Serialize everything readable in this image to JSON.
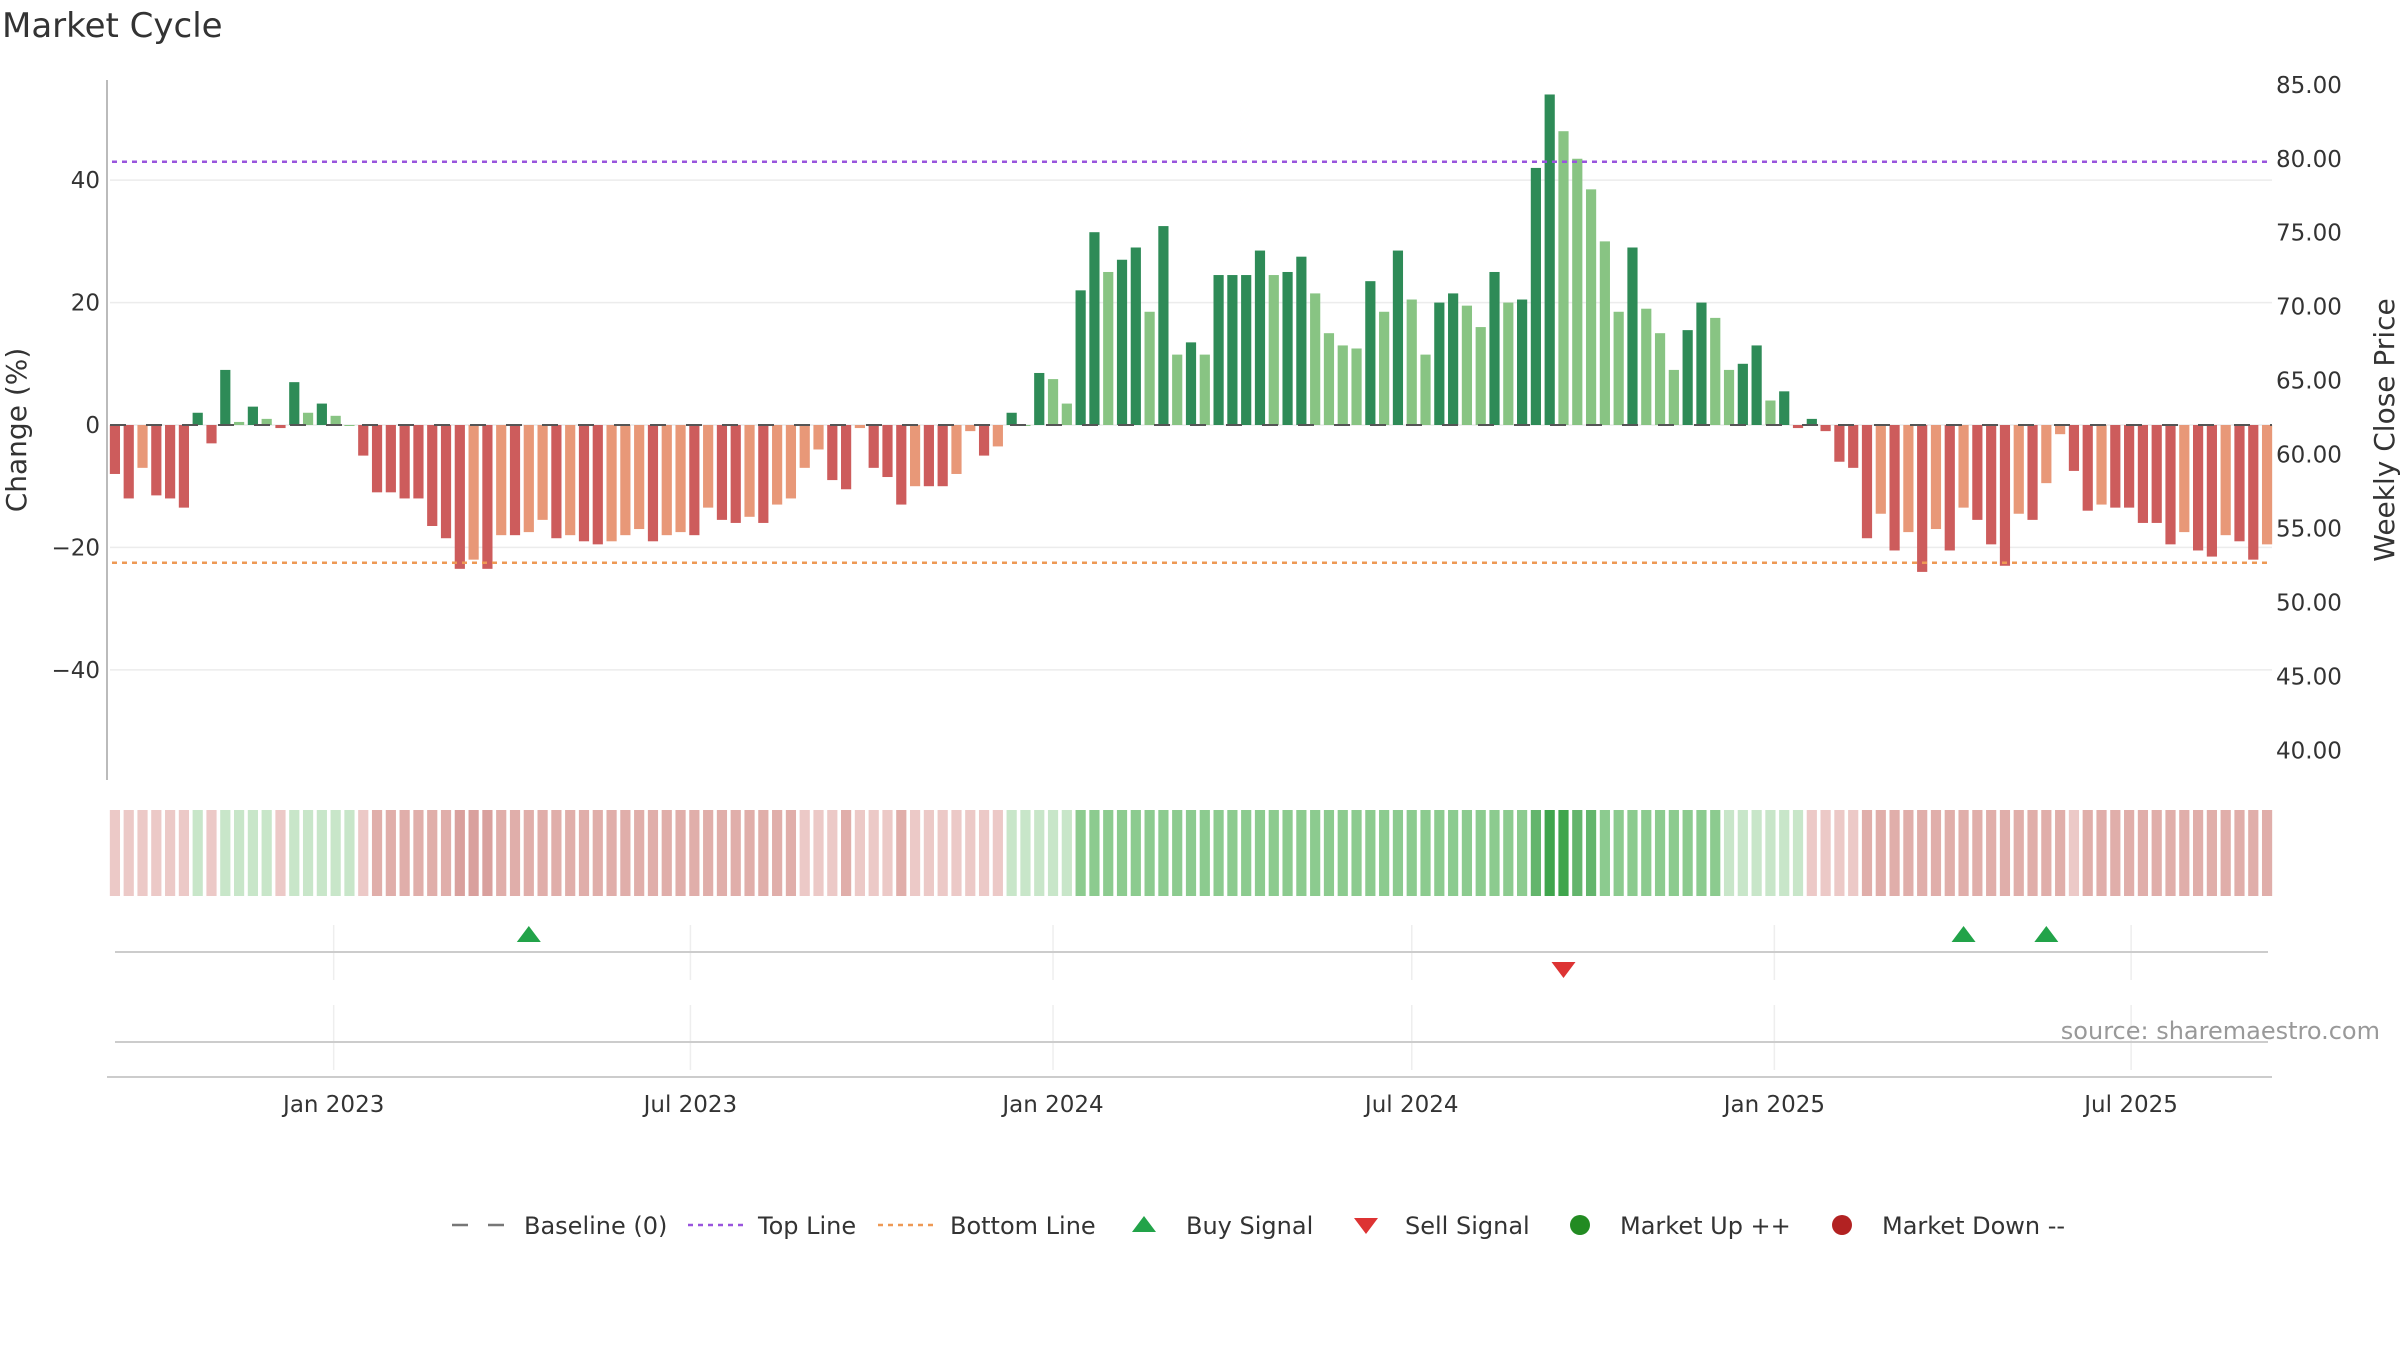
{
  "chart_data": {
    "type": "bar",
    "title": "Market Cycle",
    "ylabel": "Change (%)",
    "y2label": "Weekly Close Price",
    "ylim": [
      -58,
      58
    ],
    "y2lim": [
      38.0,
      86.0
    ],
    "yticks": [
      -40,
      -20,
      0,
      20,
      40
    ],
    "y2ticks": [
      "40.00",
      "45.00",
      "50.00",
      "55.00",
      "60.00",
      "65.00",
      "70.00",
      "75.00",
      "80.00",
      "85.00"
    ],
    "x_start": "2022-09-12",
    "x_step_days": 7,
    "x_ticks": [
      {
        "date": "2023-01-01",
        "label": "Jan 2023"
      },
      {
        "date": "2023-07-01",
        "label": "Jul 2023"
      },
      {
        "date": "2024-01-01",
        "label": "Jan 2024"
      },
      {
        "date": "2024-07-01",
        "label": "Jul 2024"
      },
      {
        "date": "2025-01-01",
        "label": "Jan 2025"
      },
      {
        "date": "2025-07-01",
        "label": "Jul 2025"
      }
    ],
    "values": [
      -8,
      -12,
      -7,
      -11.5,
      -12,
      -13.5,
      2,
      -3,
      9,
      0.5,
      3,
      1,
      -0.5,
      7,
      2,
      3.5,
      1.5,
      0,
      -5,
      -11,
      -11,
      -12,
      -12,
      -16.5,
      -18.5,
      -23.5,
      -22,
      -23.5,
      -18,
      -18,
      -17.5,
      -15.5,
      -18.5,
      -18,
      -19,
      -19.5,
      -19,
      -18,
      -17,
      -19,
      -18,
      -17.5,
      -18,
      -13.5,
      -15.5,
      -16,
      -15,
      -16,
      -13,
      -12,
      -7,
      -4,
      -9,
      -10.5,
      -0.5,
      -7,
      -8.5,
      -13,
      -10,
      -10,
      -10,
      -8,
      -1,
      -5,
      -3.5,
      2,
      0,
      8.5,
      7.5,
      3.5,
      22,
      31.5,
      25,
      27,
      29,
      18.5,
      32.5,
      11.5,
      13.5,
      11.5,
      24.5,
      24.5,
      24.5,
      28.5,
      24.5,
      25,
      27.5,
      21.5,
      15,
      13,
      12.5,
      23.5,
      18.5,
      28.5,
      20.5,
      11.5,
      20,
      21.5,
      19.5,
      16,
      25,
      20,
      20.5,
      42,
      54,
      48,
      43.5,
      38.5,
      30,
      18.5,
      29,
      19,
      15,
      9,
      15.5,
      20,
      17.5,
      9,
      10,
      13,
      4,
      5.5,
      -0.5,
      1,
      -1,
      -6,
      -7,
      -18.5,
      -14.5,
      -20.5,
      -17.5,
      -24,
      -17,
      -20.5,
      -13.5,
      -15.5,
      -19.5,
      -23,
      -14.5,
      -15.5,
      -9.5,
      -1.5,
      -7.5,
      -14,
      -13,
      -13.5,
      -13.5,
      -16,
      -16,
      -19.5,
      -17.5,
      -20.5,
      -21.5,
      -18,
      -19,
      -22,
      -19.5
    ],
    "strip_levels": [
      -1,
      -1,
      -1,
      -1,
      -1,
      -1,
      1,
      -1,
      1,
      1,
      1,
      1,
      -1,
      1,
      1,
      1,
      1,
      1,
      -1,
      -2,
      -2,
      -2,
      -2,
      -2,
      -2,
      -3,
      -3,
      -3,
      -2,
      -2,
      -2,
      -2,
      -2,
      -2,
      -2,
      -2,
      -2,
      -2,
      -2,
      -2,
      -2,
      -2,
      -2,
      -2,
      -2,
      -2,
      -2,
      -2,
      -2,
      -2,
      -1,
      -1,
      -1,
      -2,
      -1,
      -1,
      -1,
      -2,
      -1,
      -1,
      -1,
      -1,
      -1,
      -1,
      -1,
      1,
      1,
      1,
      1,
      1,
      2,
      2,
      2,
      2,
      2,
      2,
      2,
      2,
      2,
      2,
      2,
      2,
      2,
      2,
      2,
      2,
      2,
      2,
      2,
      2,
      2,
      2,
      2,
      2,
      2,
      2,
      2,
      2,
      2,
      2,
      2,
      2,
      2,
      3,
      4,
      4,
      3,
      3,
      2,
      2,
      2,
      2,
      2,
      2,
      2,
      2,
      2,
      1,
      1,
      1,
      1,
      1,
      1,
      -1,
      -1,
      -1,
      -1,
      -2,
      -2,
      -2,
      -2,
      -2,
      -2,
      -2,
      -2,
      -2,
      -2,
      -2,
      -2,
      -2,
      -2,
      -2,
      -1,
      -2,
      -2,
      -2,
      -2,
      -2,
      -2,
      -2,
      -2,
      -2,
      -2,
      -2,
      -2,
      -2,
      -2
    ],
    "top_line": 43,
    "bottom_line": -22.5,
    "signals": [
      {
        "date": "2023-04-10",
        "type": "buy"
      },
      {
        "date": "2024-09-16",
        "type": "sell"
      },
      {
        "date": "2025-04-07",
        "type": "buy"
      },
      {
        "date": "2025-05-19",
        "type": "buy"
      }
    ],
    "legend_position": "bottom",
    "legend": [
      {
        "label": "Baseline (0)",
        "kind": "dash",
        "color": "#777777"
      },
      {
        "label": "Top Line",
        "kind": "dot",
        "color": "#9955dd"
      },
      {
        "label": "Bottom Line",
        "kind": "dot",
        "color": "#ee9955"
      },
      {
        "label": "Buy Signal",
        "kind": "up",
        "color": "#22a349"
      },
      {
        "label": "Sell Signal",
        "kind": "down",
        "color": "#dd3333"
      },
      {
        "label": "Market Up ++",
        "kind": "circle",
        "color": "#228b22"
      },
      {
        "label": "Market Down --",
        "kind": "circle",
        "color": "#b22222"
      }
    ],
    "source": "source: sharemaestro.com",
    "colors": {
      "up_dark": "#2e8b57",
      "up_light": "#88c483",
      "down_dark": "#cd5c5c",
      "down_light": "#e89878",
      "top_line": "#9955dd",
      "bottom_line": "#ee9955"
    }
  }
}
